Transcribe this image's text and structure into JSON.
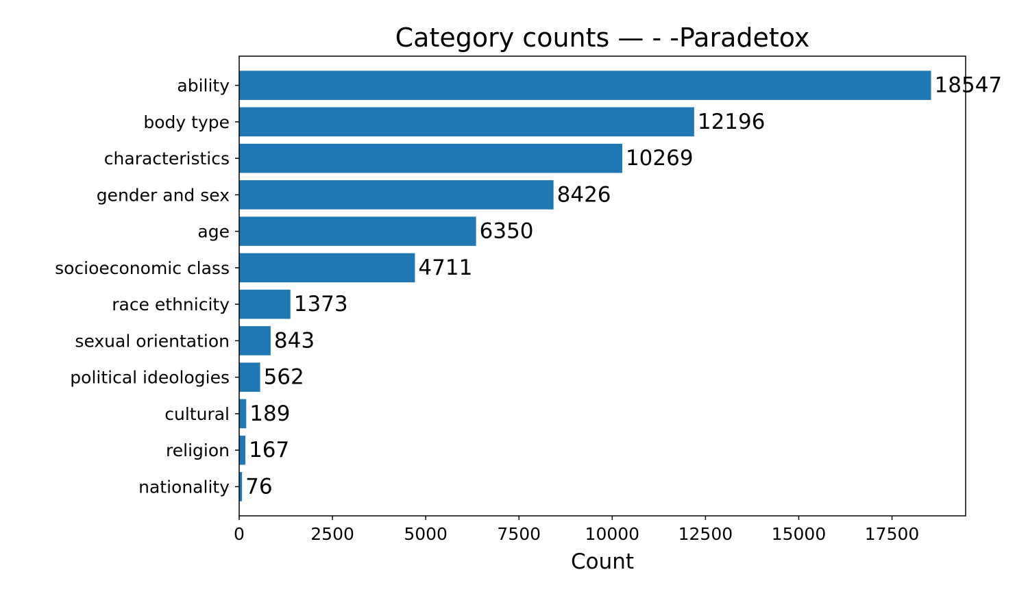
{
  "chart_data": {
    "type": "bar",
    "orientation": "horizontal",
    "title": "Category counts —  - -Paradetox",
    "xlabel": "Count",
    "ylabel": "",
    "categories": [
      "ability",
      "body type",
      "characteristics",
      "gender and sex",
      "age",
      "socioeconomic class",
      "race ethnicity",
      "sexual orientation",
      "political ideologies",
      "cultural",
      "religion",
      "nationality"
    ],
    "values": [
      18547,
      12196,
      10269,
      8426,
      6350,
      4711,
      1373,
      843,
      562,
      189,
      167,
      76
    ],
    "xlim": [
      0,
      19474
    ],
    "xticks": [
      0,
      2500,
      5000,
      7500,
      10000,
      12500,
      15000,
      17500
    ],
    "grid": false,
    "legend": "none",
    "bar_color": "#1f77b4",
    "data_labels": true
  }
}
